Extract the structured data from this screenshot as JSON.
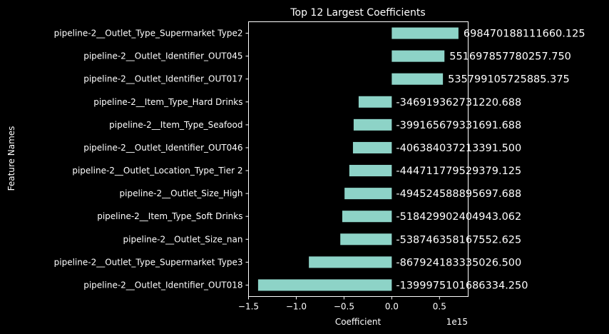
{
  "chart_data": {
    "type": "bar",
    "orientation": "horizontal",
    "title": "Top 12 Largest Coefficients",
    "xlabel": "Coefficient",
    "ylabel": "Feature Names",
    "x_scale_label": "1e15",
    "xlim": [
      -1.5,
      0.8
    ],
    "x_ticks": [
      -1.5,
      -1.0,
      -0.5,
      0.0,
      0.5
    ],
    "x_tick_labels": [
      "−1.5",
      "−1.0",
      "−0.5",
      "0.0",
      "0.5"
    ],
    "bar_color": "#8dd3c7",
    "grid": false,
    "categories": [
      "pipeline-2__Outlet_Type_Supermarket Type2",
      "pipeline-2__Outlet_Identifier_OUT045",
      "pipeline-2__Outlet_Identifier_OUT017",
      "pipeline-2__Item_Type_Hard Drinks",
      "pipeline-2__Item_Type_Seafood",
      "pipeline-2__Outlet_Identifier_OUT046",
      "pipeline-2__Outlet_Location_Type_Tier 2",
      "pipeline-2__Outlet_Size_High",
      "pipeline-2__Item_Type_Soft Drinks",
      "pipeline-2__Outlet_Size_nan",
      "pipeline-2__Outlet_Type_Supermarket Type3",
      "pipeline-2__Outlet_Identifier_OUT018"
    ],
    "values": [
      698470188111660.1,
      551697857780257.75,
      535799105725885.4,
      -346919362731220.7,
      -399165679331691.7,
      -406384037213391.5,
      -444711779529379.1,
      -494524588895697.7,
      -518429902404943.06,
      -538746358167552.6,
      -867924183335026.5,
      -1399975101686334.2
    ],
    "value_labels": [
      "698470188111660.125",
      "551697857780257.750",
      "535799105725885.375",
      "-346919362731220.688",
      "-399165679331691.688",
      "-406384037213391.500",
      "-444711779529379.125",
      "-494524588895697.688",
      "-518429902404943.062",
      "-538746358167552.625",
      "-867924183335026.500",
      "-1399975101686334.250"
    ]
  }
}
